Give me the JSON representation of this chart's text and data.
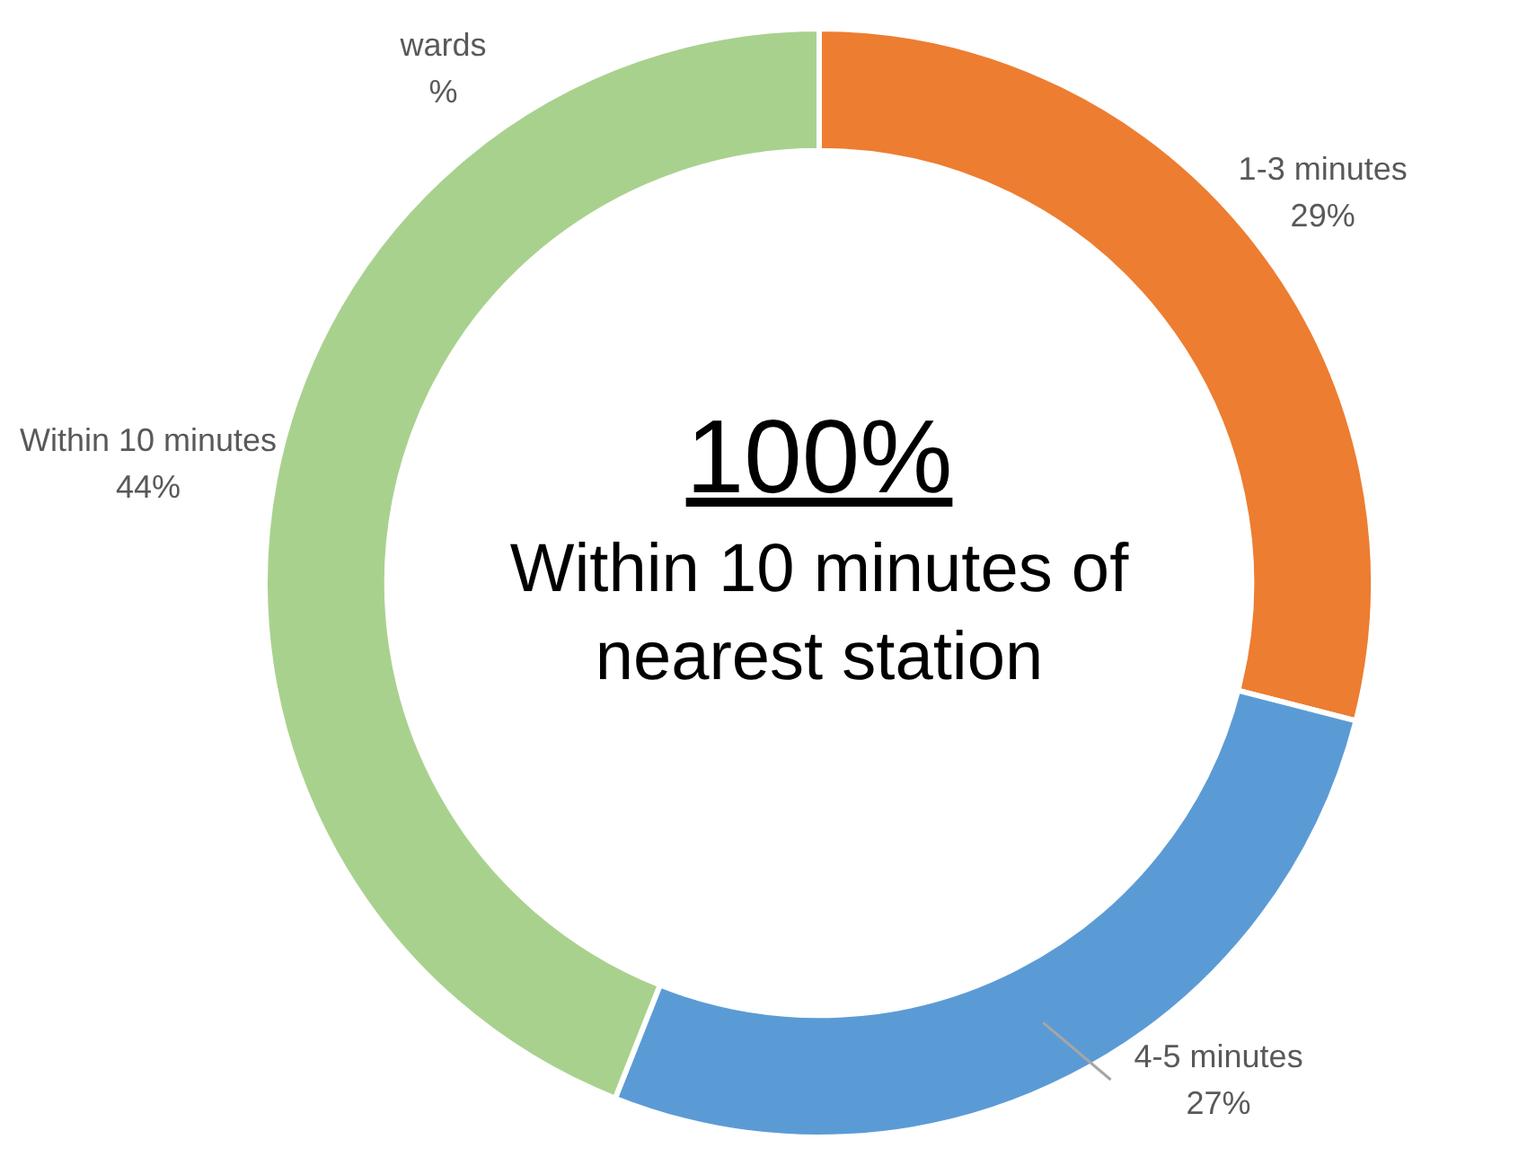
{
  "chart_data": {
    "type": "donut",
    "title": "100%",
    "subtitle": "Within 10 minutes of nearest station",
    "categories": [
      "1-3 minutes",
      "4-5 minutes",
      "Within 10 minutes",
      "wards"
    ],
    "values": [
      29,
      27,
      44,
      0
    ],
    "colors": [
      "#ed7d31",
      "#5b9bd5",
      "#a9d18e",
      "#a5a5a5"
    ],
    "value_labels": [
      "29%",
      "27%",
      "44%",
      "%"
    ],
    "legend": false
  }
}
